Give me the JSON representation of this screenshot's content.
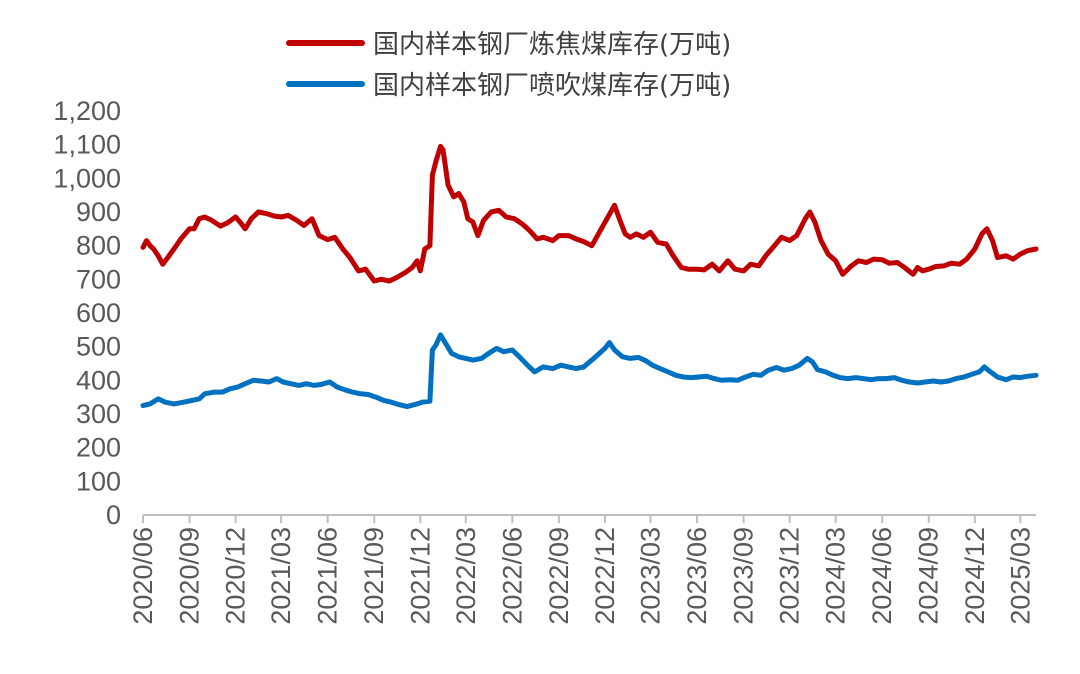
{
  "chart_data": {
    "type": "line",
    "title": "",
    "xlabel": "",
    "ylabel": "",
    "ylim": [
      0,
      1200
    ],
    "yticks": [
      0,
      100,
      200,
      300,
      400,
      500,
      600,
      700,
      800,
      900,
      1000,
      1100,
      1200
    ],
    "ytick_labels": [
      "0",
      "100",
      "200",
      "300",
      "400",
      "500",
      "600",
      "700",
      "800",
      "900",
      "1,000",
      "1,100",
      "1,200"
    ],
    "xlim": [
      "2020-06",
      "2025-04"
    ],
    "xtick_labels": [
      "2020/06",
      "2020/09",
      "2020/12",
      "2021/03",
      "2021/06",
      "2021/09",
      "2021/12",
      "2022/03",
      "2022/06",
      "2022/09",
      "2022/12",
      "2023/03",
      "2023/06",
      "2023/09",
      "2023/12",
      "2024/03",
      "2024/06",
      "2024/09",
      "2024/12",
      "2025/03"
    ],
    "grid": false,
    "legend_position": "top",
    "series": [
      {
        "name": "国内样本钢厂炼焦煤库存(万吨)",
        "color": "#C00000",
        "points": [
          [
            "2020-06-01",
            795
          ],
          [
            "2020-06-08",
            815
          ],
          [
            "2020-06-15",
            800
          ],
          [
            "2020-06-22",
            790
          ],
          [
            "2020-07-01",
            770
          ],
          [
            "2020-07-10",
            745
          ],
          [
            "2020-07-20",
            765
          ],
          [
            "2020-08-01",
            790
          ],
          [
            "2020-08-15",
            820
          ],
          [
            "2020-09-01",
            850
          ],
          [
            "2020-09-10",
            850
          ],
          [
            "2020-09-20",
            880
          ],
          [
            "2020-10-01",
            885
          ],
          [
            "2020-10-15",
            875
          ],
          [
            "2020-11-01",
            858
          ],
          [
            "2020-11-15",
            868
          ],
          [
            "2020-12-01",
            885
          ],
          [
            "2020-12-10",
            870
          ],
          [
            "2020-12-20",
            850
          ],
          [
            "2021-01-01",
            880
          ],
          [
            "2021-01-15",
            900
          ],
          [
            "2021-02-01",
            895
          ],
          [
            "2021-02-15",
            888
          ],
          [
            "2021-03-01",
            885
          ],
          [
            "2021-03-15",
            890
          ],
          [
            "2021-04-01",
            875
          ],
          [
            "2021-04-15",
            860
          ],
          [
            "2021-05-01",
            880
          ],
          [
            "2021-05-15",
            830
          ],
          [
            "2021-06-01",
            818
          ],
          [
            "2021-06-15",
            825
          ],
          [
            "2021-07-01",
            790
          ],
          [
            "2021-07-15",
            765
          ],
          [
            "2021-08-01",
            725
          ],
          [
            "2021-08-15",
            730
          ],
          [
            "2021-09-01",
            695
          ],
          [
            "2021-09-15",
            700
          ],
          [
            "2021-10-01",
            695
          ],
          [
            "2021-10-15",
            705
          ],
          [
            "2021-11-01",
            720
          ],
          [
            "2021-11-15",
            735
          ],
          [
            "2021-11-25",
            755
          ],
          [
            "2021-12-01",
            725
          ],
          [
            "2021-12-10",
            790
          ],
          [
            "2021-12-20",
            800
          ],
          [
            "2021-12-25",
            1010
          ],
          [
            "2022-01-01",
            1050
          ],
          [
            "2022-01-10",
            1095
          ],
          [
            "2022-01-15",
            1085
          ],
          [
            "2022-01-25",
            980
          ],
          [
            "2022-02-05",
            945
          ],
          [
            "2022-02-15",
            955
          ],
          [
            "2022-02-25",
            930
          ],
          [
            "2022-03-05",
            880
          ],
          [
            "2022-03-15",
            870
          ],
          [
            "2022-03-25",
            830
          ],
          [
            "2022-04-05",
            875
          ],
          [
            "2022-04-20",
            900
          ],
          [
            "2022-05-05",
            905
          ],
          [
            "2022-05-20",
            885
          ],
          [
            "2022-06-05",
            880
          ],
          [
            "2022-06-20",
            865
          ],
          [
            "2022-07-05",
            845
          ],
          [
            "2022-07-20",
            820
          ],
          [
            "2022-08-01",
            825
          ],
          [
            "2022-08-20",
            815
          ],
          [
            "2022-09-01",
            830
          ],
          [
            "2022-09-20",
            830
          ],
          [
            "2022-10-05",
            820
          ],
          [
            "2022-10-20",
            812
          ],
          [
            "2022-11-05",
            800
          ],
          [
            "2022-11-20",
            840
          ],
          [
            "2022-12-05",
            880
          ],
          [
            "2022-12-20",
            920
          ],
          [
            "2023-01-01",
            870
          ],
          [
            "2023-01-10",
            835
          ],
          [
            "2023-01-20",
            825
          ],
          [
            "2023-02-01",
            835
          ],
          [
            "2023-02-15",
            825
          ],
          [
            "2023-03-01",
            840
          ],
          [
            "2023-03-15",
            810
          ],
          [
            "2023-04-01",
            805
          ],
          [
            "2023-04-15",
            770
          ],
          [
            "2023-05-01",
            735
          ],
          [
            "2023-05-15",
            730
          ],
          [
            "2023-06-01",
            730
          ],
          [
            "2023-06-15",
            728
          ],
          [
            "2023-07-01",
            745
          ],
          [
            "2023-07-15",
            725
          ],
          [
            "2023-08-01",
            755
          ],
          [
            "2023-08-15",
            730
          ],
          [
            "2023-09-01",
            725
          ],
          [
            "2023-09-15",
            745
          ],
          [
            "2023-10-01",
            740
          ],
          [
            "2023-10-15",
            770
          ],
          [
            "2023-11-01",
            800
          ],
          [
            "2023-11-15",
            825
          ],
          [
            "2023-12-01",
            815
          ],
          [
            "2023-12-15",
            830
          ],
          [
            "2024-01-01",
            880
          ],
          [
            "2024-01-10",
            900
          ],
          [
            "2024-01-20",
            870
          ],
          [
            "2024-02-01",
            815
          ],
          [
            "2024-02-15",
            775
          ],
          [
            "2024-03-01",
            755
          ],
          [
            "2024-03-15",
            715
          ],
          [
            "2024-04-01",
            740
          ],
          [
            "2024-04-15",
            755
          ],
          [
            "2024-05-01",
            750
          ],
          [
            "2024-05-15",
            760
          ],
          [
            "2024-06-01",
            758
          ],
          [
            "2024-06-15",
            748
          ],
          [
            "2024-07-01",
            750
          ],
          [
            "2024-07-15",
            735
          ],
          [
            "2024-08-01",
            715
          ],
          [
            "2024-08-10",
            735
          ],
          [
            "2024-08-20",
            725
          ],
          [
            "2024-09-01",
            730
          ],
          [
            "2024-09-15",
            738
          ],
          [
            "2024-10-01",
            740
          ],
          [
            "2024-10-15",
            748
          ],
          [
            "2024-11-01",
            745
          ],
          [
            "2024-11-15",
            760
          ],
          [
            "2024-12-01",
            790
          ],
          [
            "2024-12-15",
            835
          ],
          [
            "2024-12-25",
            850
          ],
          [
            "2025-01-05",
            815
          ],
          [
            "2025-01-15",
            765
          ],
          [
            "2025-02-01",
            770
          ],
          [
            "2025-02-15",
            760
          ],
          [
            "2025-03-01",
            775
          ],
          [
            "2025-03-15",
            785
          ],
          [
            "2025-04-01",
            790
          ]
        ]
      },
      {
        "name": "国内样本钢厂喷吹煤库存(万吨)",
        "color": "#0070C0",
        "points": [
          [
            "2020-06-01",
            325
          ],
          [
            "2020-06-15",
            330
          ],
          [
            "2020-07-01",
            345
          ],
          [
            "2020-07-15",
            335
          ],
          [
            "2020-08-01",
            330
          ],
          [
            "2020-08-20",
            335
          ],
          [
            "2020-09-05",
            340
          ],
          [
            "2020-09-20",
            345
          ],
          [
            "2020-10-01",
            360
          ],
          [
            "2020-10-20",
            365
          ],
          [
            "2020-11-05",
            365
          ],
          [
            "2020-11-20",
            375
          ],
          [
            "2020-12-05",
            380
          ],
          [
            "2020-12-20",
            390
          ],
          [
            "2021-01-05",
            400
          ],
          [
            "2021-01-20",
            398
          ],
          [
            "2021-02-05",
            395
          ],
          [
            "2021-02-20",
            405
          ],
          [
            "2021-03-05",
            395
          ],
          [
            "2021-03-20",
            390
          ],
          [
            "2021-04-05",
            385
          ],
          [
            "2021-04-20",
            390
          ],
          [
            "2021-05-05",
            385
          ],
          [
            "2021-05-20",
            388
          ],
          [
            "2021-06-05",
            395
          ],
          [
            "2021-06-20",
            380
          ],
          [
            "2021-07-05",
            372
          ],
          [
            "2021-07-20",
            365
          ],
          [
            "2021-08-05",
            360
          ],
          [
            "2021-08-20",
            358
          ],
          [
            "2021-09-05",
            350
          ],
          [
            "2021-09-20",
            340
          ],
          [
            "2021-10-05",
            335
          ],
          [
            "2021-10-20",
            328
          ],
          [
            "2021-11-05",
            322
          ],
          [
            "2021-11-20",
            328
          ],
          [
            "2021-12-05",
            335
          ],
          [
            "2021-12-20",
            338
          ],
          [
            "2021-12-25",
            490
          ],
          [
            "2022-01-01",
            505
          ],
          [
            "2022-01-10",
            535
          ],
          [
            "2022-01-20",
            510
          ],
          [
            "2022-02-01",
            480
          ],
          [
            "2022-02-15",
            470
          ],
          [
            "2022-03-01",
            465
          ],
          [
            "2022-03-15",
            460
          ],
          [
            "2022-04-01",
            465
          ],
          [
            "2022-04-15",
            480
          ],
          [
            "2022-05-01",
            495
          ],
          [
            "2022-05-15",
            485
          ],
          [
            "2022-06-01",
            490
          ],
          [
            "2022-06-15",
            470
          ],
          [
            "2022-07-01",
            445
          ],
          [
            "2022-07-15",
            425
          ],
          [
            "2022-08-01",
            440
          ],
          [
            "2022-08-20",
            435
          ],
          [
            "2022-09-05",
            445
          ],
          [
            "2022-09-20",
            440
          ],
          [
            "2022-10-05",
            435
          ],
          [
            "2022-10-20",
            440
          ],
          [
            "2022-11-05",
            460
          ],
          [
            "2022-11-20",
            480
          ],
          [
            "2022-12-01",
            495
          ],
          [
            "2022-12-10",
            512
          ],
          [
            "2022-12-20",
            490
          ],
          [
            "2023-01-05",
            470
          ],
          [
            "2023-01-20",
            465
          ],
          [
            "2023-02-05",
            468
          ],
          [
            "2023-02-20",
            458
          ],
          [
            "2023-03-05",
            445
          ],
          [
            "2023-03-20",
            435
          ],
          [
            "2023-04-05",
            425
          ],
          [
            "2023-04-20",
            415
          ],
          [
            "2023-05-05",
            410
          ],
          [
            "2023-05-20",
            408
          ],
          [
            "2023-06-05",
            410
          ],
          [
            "2023-06-20",
            412
          ],
          [
            "2023-07-05",
            405
          ],
          [
            "2023-07-20",
            400
          ],
          [
            "2023-08-05",
            402
          ],
          [
            "2023-08-20",
            400
          ],
          [
            "2023-09-05",
            410
          ],
          [
            "2023-09-20",
            418
          ],
          [
            "2023-10-05",
            415
          ],
          [
            "2023-10-20",
            430
          ],
          [
            "2023-11-05",
            438
          ],
          [
            "2023-11-20",
            430
          ],
          [
            "2023-12-05",
            435
          ],
          [
            "2023-12-20",
            445
          ],
          [
            "2024-01-05",
            465
          ],
          [
            "2024-01-15",
            455
          ],
          [
            "2024-01-25",
            432
          ],
          [
            "2024-02-10",
            425
          ],
          [
            "2024-02-25",
            415
          ],
          [
            "2024-03-10",
            408
          ],
          [
            "2024-03-25",
            405
          ],
          [
            "2024-04-10",
            408
          ],
          [
            "2024-04-25",
            405
          ],
          [
            "2024-05-10",
            402
          ],
          [
            "2024-05-25",
            405
          ],
          [
            "2024-06-10",
            405
          ],
          [
            "2024-06-25",
            408
          ],
          [
            "2024-07-10",
            400
          ],
          [
            "2024-07-25",
            395
          ],
          [
            "2024-08-10",
            392
          ],
          [
            "2024-08-25",
            395
          ],
          [
            "2024-09-10",
            398
          ],
          [
            "2024-09-25",
            395
          ],
          [
            "2024-10-10",
            398
          ],
          [
            "2024-10-25",
            405
          ],
          [
            "2024-11-10",
            410
          ],
          [
            "2024-11-25",
            418
          ],
          [
            "2024-12-10",
            425
          ],
          [
            "2024-12-20",
            440
          ],
          [
            "2025-01-01",
            425
          ],
          [
            "2025-01-15",
            410
          ],
          [
            "2025-02-01",
            402
          ],
          [
            "2025-02-15",
            410
          ],
          [
            "2025-03-01",
            408
          ],
          [
            "2025-03-15",
            412
          ],
          [
            "2025-04-01",
            415
          ]
        ]
      }
    ]
  }
}
